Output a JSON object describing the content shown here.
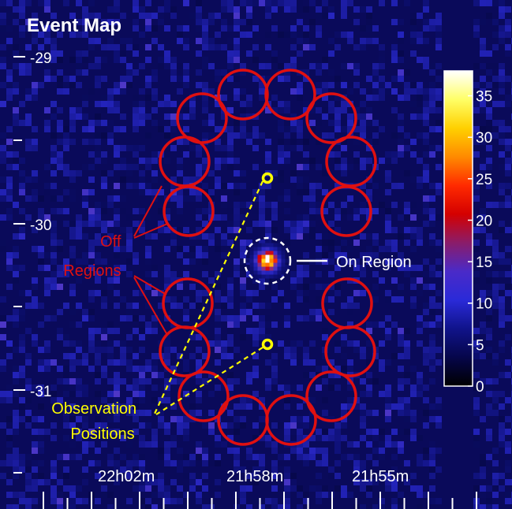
{
  "chart_data": {
    "type": "heatmap",
    "title": "Event Map",
    "y_ticks": [
      "-29",
      "-30",
      "-31"
    ],
    "x_ticks": [
      "22h02m",
      "21h58m",
      "21h55m"
    ],
    "colorbar": {
      "ticks": [
        "35",
        "30",
        "25",
        "20",
        "15",
        "10",
        "5",
        "0"
      ],
      "range": [
        0,
        38
      ],
      "stops": [
        "#ffffff",
        "#ffff66",
        "#ffd000",
        "#ff8a00",
        "#ff2a00",
        "#d40000",
        "#8a1c6a",
        "#4a2ac8",
        "#2a2ad8",
        "#10138a",
        "#06064a",
        "#000000"
      ]
    },
    "annotations": {
      "off_regions": "Off\nRegions",
      "on_region": "On Region",
      "observation_positions": "Observation\nPositions"
    },
    "colors": {
      "background": "#0a0a5a",
      "off_circle": "#e01010",
      "off_text": "#e01010",
      "observation": "#ffff00",
      "on_text": "#ffffff"
    },
    "source_counts": {
      "peak": 38,
      "mean_background": 4
    },
    "off_region_count": 16
  }
}
